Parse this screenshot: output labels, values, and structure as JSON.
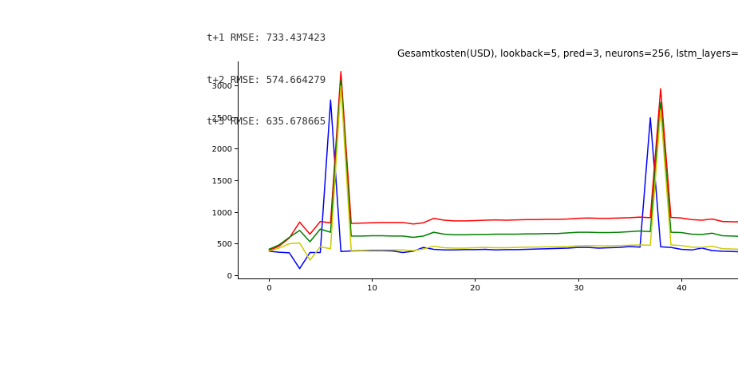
{
  "stdout_lines": [
    "t+1 RMSE: 733.437423",
    "t+2 RMSE: 574.664279",
    "t+3 RMSE: 635.678665"
  ],
  "chart_data": {
    "type": "line",
    "title": "Gesamtkosten(USD), lookback=5, pred=3, neurons=256, lstm_layers=",
    "xlabel": "",
    "ylabel": "",
    "xlim": [
      -3,
      45.5
    ],
    "ylim": [
      -50,
      3380
    ],
    "xticks": [
      0,
      10,
      20,
      30,
      40
    ],
    "yticks": [
      0,
      500,
      1000,
      1500,
      2000,
      2500,
      3000
    ],
    "grid": false,
    "legend": "none",
    "series": [
      {
        "color": "#0000ff",
        "x": [
          0,
          1,
          2,
          3,
          4,
          5,
          6,
          7,
          8,
          9,
          10,
          11,
          12,
          13,
          14,
          15,
          16,
          17,
          18,
          19,
          20,
          21,
          22,
          23,
          24,
          25,
          26,
          27,
          28,
          29,
          30,
          31,
          32,
          33,
          34,
          35,
          36,
          37,
          38,
          39,
          40,
          41,
          42,
          43,
          44,
          45,
          46
        ],
        "y": [
          380,
          365,
          355,
          105,
          360,
          360,
          2770,
          375,
          385,
          390,
          390,
          390,
          385,
          360,
          380,
          440,
          410,
          400,
          400,
          405,
          405,
          410,
          400,
          405,
          405,
          410,
          415,
          420,
          425,
          430,
          440,
          440,
          430,
          435,
          440,
          455,
          445,
          2490,
          450,
          440,
          410,
          400,
          430,
          390,
          380,
          375,
          370
        ]
      },
      {
        "color": "#ff0000",
        "x": [
          0,
          1,
          2,
          3,
          4,
          5,
          6,
          7,
          8,
          9,
          10,
          11,
          12,
          13,
          14,
          15,
          16,
          17,
          18,
          19,
          20,
          21,
          22,
          23,
          24,
          25,
          26,
          27,
          28,
          29,
          30,
          31,
          32,
          33,
          34,
          35,
          36,
          37,
          38,
          39,
          40,
          41,
          42,
          43,
          44,
          45,
          46
        ],
        "y": [
          390,
          460,
          590,
          840,
          650,
          850,
          830,
          3220,
          820,
          825,
          830,
          835,
          835,
          835,
          810,
          830,
          900,
          870,
          860,
          860,
          865,
          870,
          875,
          870,
          875,
          880,
          880,
          885,
          885,
          890,
          900,
          905,
          900,
          900,
          905,
          910,
          920,
          910,
          2950,
          915,
          905,
          880,
          870,
          890,
          850,
          845,
          845
        ]
      },
      {
        "color": "#008000",
        "x": [
          0,
          1,
          2,
          3,
          4,
          5,
          6,
          7,
          8,
          9,
          10,
          11,
          12,
          13,
          14,
          15,
          16,
          17,
          18,
          19,
          20,
          21,
          22,
          23,
          24,
          25,
          26,
          27,
          28,
          29,
          30,
          31,
          32,
          33,
          34,
          35,
          36,
          37,
          38,
          39,
          40,
          41,
          42,
          43,
          44,
          45,
          46
        ],
        "y": [
          410,
          480,
          600,
          710,
          530,
          730,
          680,
          3080,
          620,
          620,
          625,
          625,
          620,
          620,
          600,
          620,
          680,
          650,
          640,
          640,
          645,
          645,
          650,
          650,
          650,
          655,
          655,
          660,
          660,
          670,
          680,
          680,
          675,
          675,
          680,
          690,
          700,
          690,
          2730,
          680,
          675,
          650,
          645,
          665,
          625,
          620,
          615
        ]
      },
      {
        "color": "#cccc00",
        "x": [
          0,
          1,
          2,
          3,
          4,
          5,
          6,
          7,
          8,
          9,
          10,
          11,
          12,
          13,
          14,
          15,
          16,
          17,
          18,
          19,
          20,
          21,
          22,
          23,
          24,
          25,
          26,
          27,
          28,
          29,
          30,
          31,
          32,
          33,
          34,
          35,
          36,
          37,
          38,
          39,
          40,
          41,
          42,
          43,
          44,
          45,
          46
        ],
        "y": [
          380,
          430,
          500,
          510,
          240,
          450,
          420,
          2990,
          390,
          395,
          400,
          400,
          400,
          400,
          390,
          415,
          460,
          435,
          430,
          430,
          435,
          440,
          435,
          435,
          440,
          445,
          445,
          450,
          450,
          455,
          465,
          470,
          465,
          465,
          470,
          475,
          480,
          475,
          2620,
          480,
          470,
          445,
          440,
          460,
          420,
          415,
          410
        ]
      }
    ]
  }
}
